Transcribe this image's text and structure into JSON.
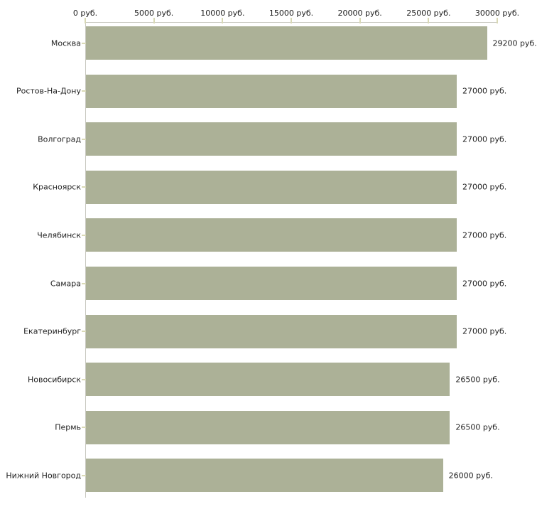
{
  "chart_data": {
    "type": "bar",
    "orientation": "horizontal",
    "title": "",
    "xlabel": "",
    "ylabel": "",
    "xlim": [
      0,
      30000
    ],
    "grid": false,
    "legend": false,
    "bar_color": "#acb197",
    "axis_color": "#c8c8c0",
    "tick_color": "#d9d9b6",
    "text_color": "#1f1f1f",
    "x_tick_values": [
      0,
      5000,
      10000,
      15000,
      20000,
      25000,
      30000
    ],
    "x_tick_labels": [
      "0 руб.",
      "5000 руб.",
      "10000 руб.",
      "15000 руб.",
      "20000 руб.",
      "25000 руб.",
      "30000 руб."
    ],
    "categories": [
      "Москва",
      "Ростов-На-Дону",
      "Волгоград",
      "Красноярск",
      "Челябинск",
      "Самара",
      "Екатеринбург",
      "Новосибирск",
      "Пермь",
      "Нижний Новгород"
    ],
    "values": [
      29200,
      27000,
      27000,
      27000,
      27000,
      27000,
      27000,
      26500,
      26500,
      26000
    ],
    "value_labels": [
      "29200 руб.",
      "27000 руб.",
      "27000 руб.",
      "27000 руб.",
      "27000 руб.",
      "27000 руб.",
      "27000 руб.",
      "26500 руб.",
      "26500 руб.",
      "26000 руб."
    ]
  }
}
